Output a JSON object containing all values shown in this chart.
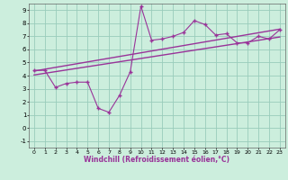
{
  "title": "",
  "xlabel": "Windchill (Refroidissement éolien,°C)",
  "background_color": "#cceedd",
  "grid_color": "#99ccbb",
  "line_color": "#993399",
  "xlim": [
    -0.5,
    23.5
  ],
  "ylim": [
    -1.5,
    9.5
  ],
  "xticks": [
    0,
    1,
    2,
    3,
    4,
    5,
    6,
    7,
    8,
    9,
    10,
    11,
    12,
    13,
    14,
    15,
    16,
    17,
    18,
    19,
    20,
    21,
    22,
    23
  ],
  "yticks": [
    -1,
    0,
    1,
    2,
    3,
    4,
    5,
    6,
    7,
    8,
    9
  ],
  "data_x": [
    0,
    1,
    2,
    3,
    4,
    5,
    6,
    7,
    8,
    9,
    10,
    11,
    12,
    13,
    14,
    15,
    16,
    17,
    18,
    19,
    20,
    21,
    22,
    23
  ],
  "data_y": [
    4.4,
    4.4,
    3.1,
    3.4,
    3.5,
    3.5,
    1.5,
    1.2,
    2.5,
    4.3,
    9.3,
    6.7,
    6.8,
    7.0,
    7.3,
    8.2,
    7.9,
    7.1,
    7.2,
    6.5,
    6.5,
    7.0,
    6.8,
    7.5
  ],
  "trend1_x": [
    0,
    23
  ],
  "trend1_y": [
    4.35,
    7.55
  ],
  "trend2_x": [
    0,
    23
  ],
  "trend2_y": [
    4.05,
    6.95
  ]
}
